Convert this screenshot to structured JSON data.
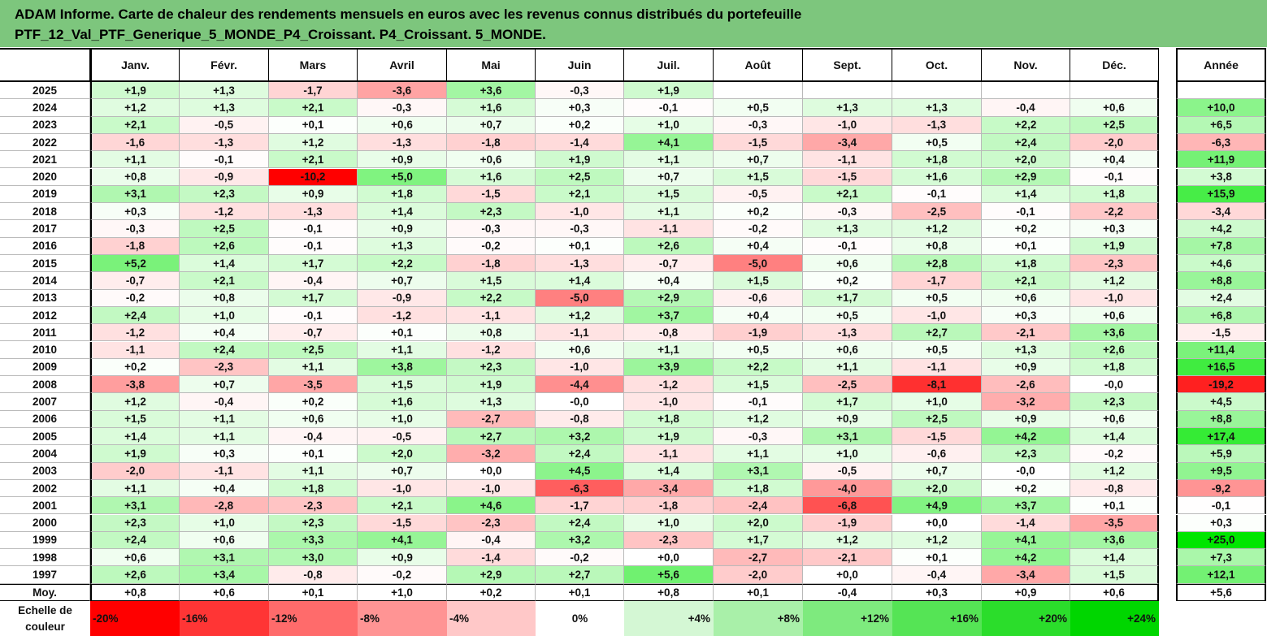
{
  "title_lines": [
    "ADAM Informe. Carte de chaleur des rendements mensuels en euros avec les revenus connus distribués du portefeuille",
    "PTF_12_Val_PTF_Generique_5_MONDE_P4_Croissant. P4_Croissant. 5_MONDE."
  ],
  "corner_label": "",
  "colors": {
    "title_bg": "#7dc67d",
    "positive": "#00e600",
    "negative": "#ff0000",
    "neutral": "#ffffff"
  },
  "chart_data": {
    "type": "heatmap",
    "columns": [
      "Janv.",
      "Févr.",
      "Mars",
      "Avril",
      "Mai",
      "Juin",
      "Juil.",
      "Août",
      "Sept.",
      "Oct.",
      "Nov.",
      "Déc."
    ],
    "annual_header": "Année",
    "rows": [
      {
        "year": "2025",
        "values": [
          "+1,9",
          "+1,3",
          "-1,7",
          "-3,6",
          "+3,6",
          "-0,3",
          "+1,9",
          "",
          "",
          "",
          "",
          ""
        ],
        "annual": ""
      },
      {
        "year": "2024",
        "values": [
          "+1,2",
          "+1,3",
          "+2,1",
          "-0,3",
          "+1,6",
          "+0,3",
          "-0,1",
          "+0,5",
          "+1,3",
          "+1,3",
          "-0,4",
          "+0,6"
        ],
        "annual": "+10,0"
      },
      {
        "year": "2023",
        "values": [
          "+2,1",
          "-0,5",
          "+0,1",
          "+0,6",
          "+0,7",
          "+0,2",
          "+1,0",
          "-0,3",
          "-1,0",
          "-1,3",
          "+2,2",
          "+2,5"
        ],
        "annual": "+6,5"
      },
      {
        "year": "2022",
        "values": [
          "-1,6",
          "-1,3",
          "+1,2",
          "-1,3",
          "-1,8",
          "-1,4",
          "+4,1",
          "-1,5",
          "-3,4",
          "+0,5",
          "+2,4",
          "-2,0"
        ],
        "annual": "-6,3"
      },
      {
        "year": "2021",
        "values": [
          "+1,1",
          "-0,1",
          "+2,1",
          "+0,9",
          "+0,6",
          "+1,9",
          "+1,1",
          "+0,7",
          "-1,1",
          "+1,8",
          "+2,0",
          "+0,4"
        ],
        "annual": "+11,9"
      },
      {
        "year": "2020",
        "values": [
          "+0,8",
          "-0,9",
          "-10,2",
          "+5,0",
          "+1,6",
          "+2,5",
          "+0,7",
          "+1,5",
          "-1,5",
          "+1,6",
          "+2,9",
          "-0,1"
        ],
        "annual": "+3,8"
      },
      {
        "year": "2019",
        "values": [
          "+3,1",
          "+2,3",
          "+0,9",
          "+1,8",
          "-1,5",
          "+2,1",
          "+1,5",
          "-0,5",
          "+2,1",
          "-0,1",
          "+1,4",
          "+1,8"
        ],
        "annual": "+15,9"
      },
      {
        "year": "2018",
        "values": [
          "+0,3",
          "-1,2",
          "-1,3",
          "+1,4",
          "+2,3",
          "-1,0",
          "+1,1",
          "+0,2",
          "-0,3",
          "-2,5",
          "-0,1",
          "-2,2"
        ],
        "annual": "-3,4"
      },
      {
        "year": "2017",
        "values": [
          "-0,3",
          "+2,5",
          "-0,1",
          "+0,9",
          "-0,3",
          "-0,3",
          "-1,1",
          "-0,2",
          "+1,3",
          "+1,2",
          "+0,2",
          "+0,3"
        ],
        "annual": "+4,2"
      },
      {
        "year": "2016",
        "values": [
          "-1,8",
          "+2,6",
          "-0,1",
          "+1,3",
          "-0,2",
          "+0,1",
          "+2,6",
          "+0,4",
          "-0,1",
          "+0,8",
          "+0,1",
          "+1,9"
        ],
        "annual": "+7,8"
      },
      {
        "year": "2015",
        "values": [
          "+5,2",
          "+1,4",
          "+1,7",
          "+2,2",
          "-1,8",
          "-1,3",
          "-0,7",
          "-5,0",
          "+0,6",
          "+2,8",
          "+1,8",
          "-2,3"
        ],
        "annual": "+4,6"
      },
      {
        "year": "2014",
        "values": [
          "-0,7",
          "+2,1",
          "-0,4",
          "+0,7",
          "+1,5",
          "+1,4",
          "+0,4",
          "+1,5",
          "+0,2",
          "-1,7",
          "+2,1",
          "+1,2"
        ],
        "annual": "+8,8"
      },
      {
        "year": "2013",
        "values": [
          "-0,2",
          "+0,8",
          "+1,7",
          "-0,9",
          "+2,2",
          "-5,0",
          "+2,9",
          "-0,6",
          "+1,7",
          "+0,5",
          "+0,6",
          "-1,0"
        ],
        "annual": "+2,4"
      },
      {
        "year": "2012",
        "values": [
          "+2,4",
          "+1,0",
          "-0,1",
          "-1,2",
          "-1,1",
          "+1,2",
          "+3,7",
          "+0,4",
          "+0,5",
          "-1,0",
          "+0,3",
          "+0,6"
        ],
        "annual": "+6,8"
      },
      {
        "year": "2011",
        "values": [
          "-1,2",
          "+0,4",
          "-0,7",
          "+0,1",
          "+0,8",
          "-1,1",
          "-0,8",
          "-1,9",
          "-1,3",
          "+2,7",
          "-2,1",
          "+3,6"
        ],
        "annual": "-1,5"
      },
      {
        "year": "2010",
        "values": [
          "-1,1",
          "+2,4",
          "+2,5",
          "+1,1",
          "-1,2",
          "+0,6",
          "+1,1",
          "+0,5",
          "+0,6",
          "+0,5",
          "+1,3",
          "+2,6"
        ],
        "annual": "+11,4"
      },
      {
        "year": "2009",
        "values": [
          "+0,2",
          "-2,3",
          "+1,1",
          "+3,8",
          "+2,3",
          "-1,0",
          "+3,9",
          "+2,2",
          "+1,1",
          "-1,1",
          "+0,9",
          "+1,8"
        ],
        "annual": "+16,5"
      },
      {
        "year": "2008",
        "values": [
          "-3,8",
          "+0,7",
          "-3,5",
          "+1,5",
          "+1,9",
          "-4,4",
          "-1,2",
          "+1,5",
          "-2,5",
          "-8,1",
          "-2,6",
          "-0,0"
        ],
        "annual": "-19,2"
      },
      {
        "year": "2007",
        "values": [
          "+1,2",
          "-0,4",
          "+0,2",
          "+1,6",
          "+1,3",
          "-0,0",
          "-1,0",
          "-0,1",
          "+1,7",
          "+1,0",
          "-3,2",
          "+2,3"
        ],
        "annual": "+4,5"
      },
      {
        "year": "2006",
        "values": [
          "+1,5",
          "+1,1",
          "+0,6",
          "+1,0",
          "-2,7",
          "-0,8",
          "+1,8",
          "+1,2",
          "+0,9",
          "+2,5",
          "+0,9",
          "+0,6"
        ],
        "annual": "+8,8"
      },
      {
        "year": "2005",
        "values": [
          "+1,4",
          "+1,1",
          "-0,4",
          "-0,5",
          "+2,7",
          "+3,2",
          "+1,9",
          "-0,3",
          "+3,1",
          "-1,5",
          "+4,2",
          "+1,4"
        ],
        "annual": "+17,4"
      },
      {
        "year": "2004",
        "values": [
          "+1,9",
          "+0,3",
          "+0,1",
          "+2,0",
          "-3,2",
          "+2,4",
          "-1,1",
          "+1,1",
          "+1,0",
          "-0,6",
          "+2,3",
          "-0,2"
        ],
        "annual": "+5,9"
      },
      {
        "year": "2003",
        "values": [
          "-2,0",
          "-1,1",
          "+1,1",
          "+0,7",
          "+0,0",
          "+4,5",
          "+1,4",
          "+3,1",
          "-0,5",
          "+0,7",
          "-0,0",
          "+1,2"
        ],
        "annual": "+9,5"
      },
      {
        "year": "2002",
        "values": [
          "+1,1",
          "+0,4",
          "+1,8",
          "-1,0",
          "-1,0",
          "-6,3",
          "-3,4",
          "+1,8",
          "-4,0",
          "+2,0",
          "+0,2",
          "-0,8"
        ],
        "annual": "-9,2"
      },
      {
        "year": "2001",
        "values": [
          "+3,1",
          "-2,8",
          "-2,3",
          "+2,1",
          "+4,6",
          "-1,7",
          "-1,8",
          "-2,4",
          "-6,8",
          "+4,9",
          "+3,7",
          "+0,1"
        ],
        "annual": "-0,1"
      },
      {
        "year": "2000",
        "values": [
          "+2,3",
          "+1,0",
          "+2,3",
          "-1,5",
          "-2,3",
          "+2,4",
          "+1,0",
          "+2,0",
          "-1,9",
          "+0,0",
          "-1,4",
          "-3,5"
        ],
        "annual": "+0,3"
      },
      {
        "year": "1999",
        "values": [
          "+2,4",
          "+0,6",
          "+3,3",
          "+4,1",
          "-0,4",
          "+3,2",
          "-2,3",
          "+1,7",
          "+1,2",
          "+1,2",
          "+4,1",
          "+3,6"
        ],
        "annual": "+25,0"
      },
      {
        "year": "1998",
        "values": [
          "+0,6",
          "+3,1",
          "+3,0",
          "+0,9",
          "-1,4",
          "-0,2",
          "+0,0",
          "-2,7",
          "-2,1",
          "+0,1",
          "+4,2",
          "+1,4"
        ],
        "annual": "+7,3"
      },
      {
        "year": "1997",
        "values": [
          "+2,6",
          "+3,4",
          "-0,8",
          "-0,2",
          "+2,9",
          "+2,7",
          "+5,6",
          "-2,0",
          "+0,0",
          "-0,4",
          "-3,4",
          "+1,5"
        ],
        "annual": "+12,1"
      }
    ],
    "average": {
      "label": "Moy.",
      "values": [
        "+0,8",
        "+0,6",
        "+0,1",
        "+1,0",
        "+0,2",
        "+0,1",
        "+0,8",
        "+0,1",
        "-0,4",
        "+0,3",
        "+0,9",
        "+0,6"
      ],
      "annual": "+5,6"
    },
    "scale": {
      "label_lines": [
        "Echelle de",
        "couleur"
      ],
      "steps": [
        {
          "label": "-20%",
          "color": "#ff0000"
        },
        {
          "label": "-16%",
          "color": "#ff3535"
        },
        {
          "label": "-12%",
          "color": "#ff6b6b"
        },
        {
          "label": "-8%",
          "color": "#ff9494"
        },
        {
          "label": "-4%",
          "color": "#ffc8c8"
        },
        {
          "label": "0%",
          "color": "#ffffff"
        },
        {
          "label": "+4%",
          "color": "#d4f7d4"
        },
        {
          "label": "+8%",
          "color": "#a9f0a9"
        },
        {
          "label": "+12%",
          "color": "#7eea7e"
        },
        {
          "label": "+16%",
          "color": "#55e455"
        },
        {
          "label": "+20%",
          "color": "#2bdd2b"
        },
        {
          "label": "+24%",
          "color": "#00d600"
        }
      ],
      "trailing_label": ""
    }
  }
}
